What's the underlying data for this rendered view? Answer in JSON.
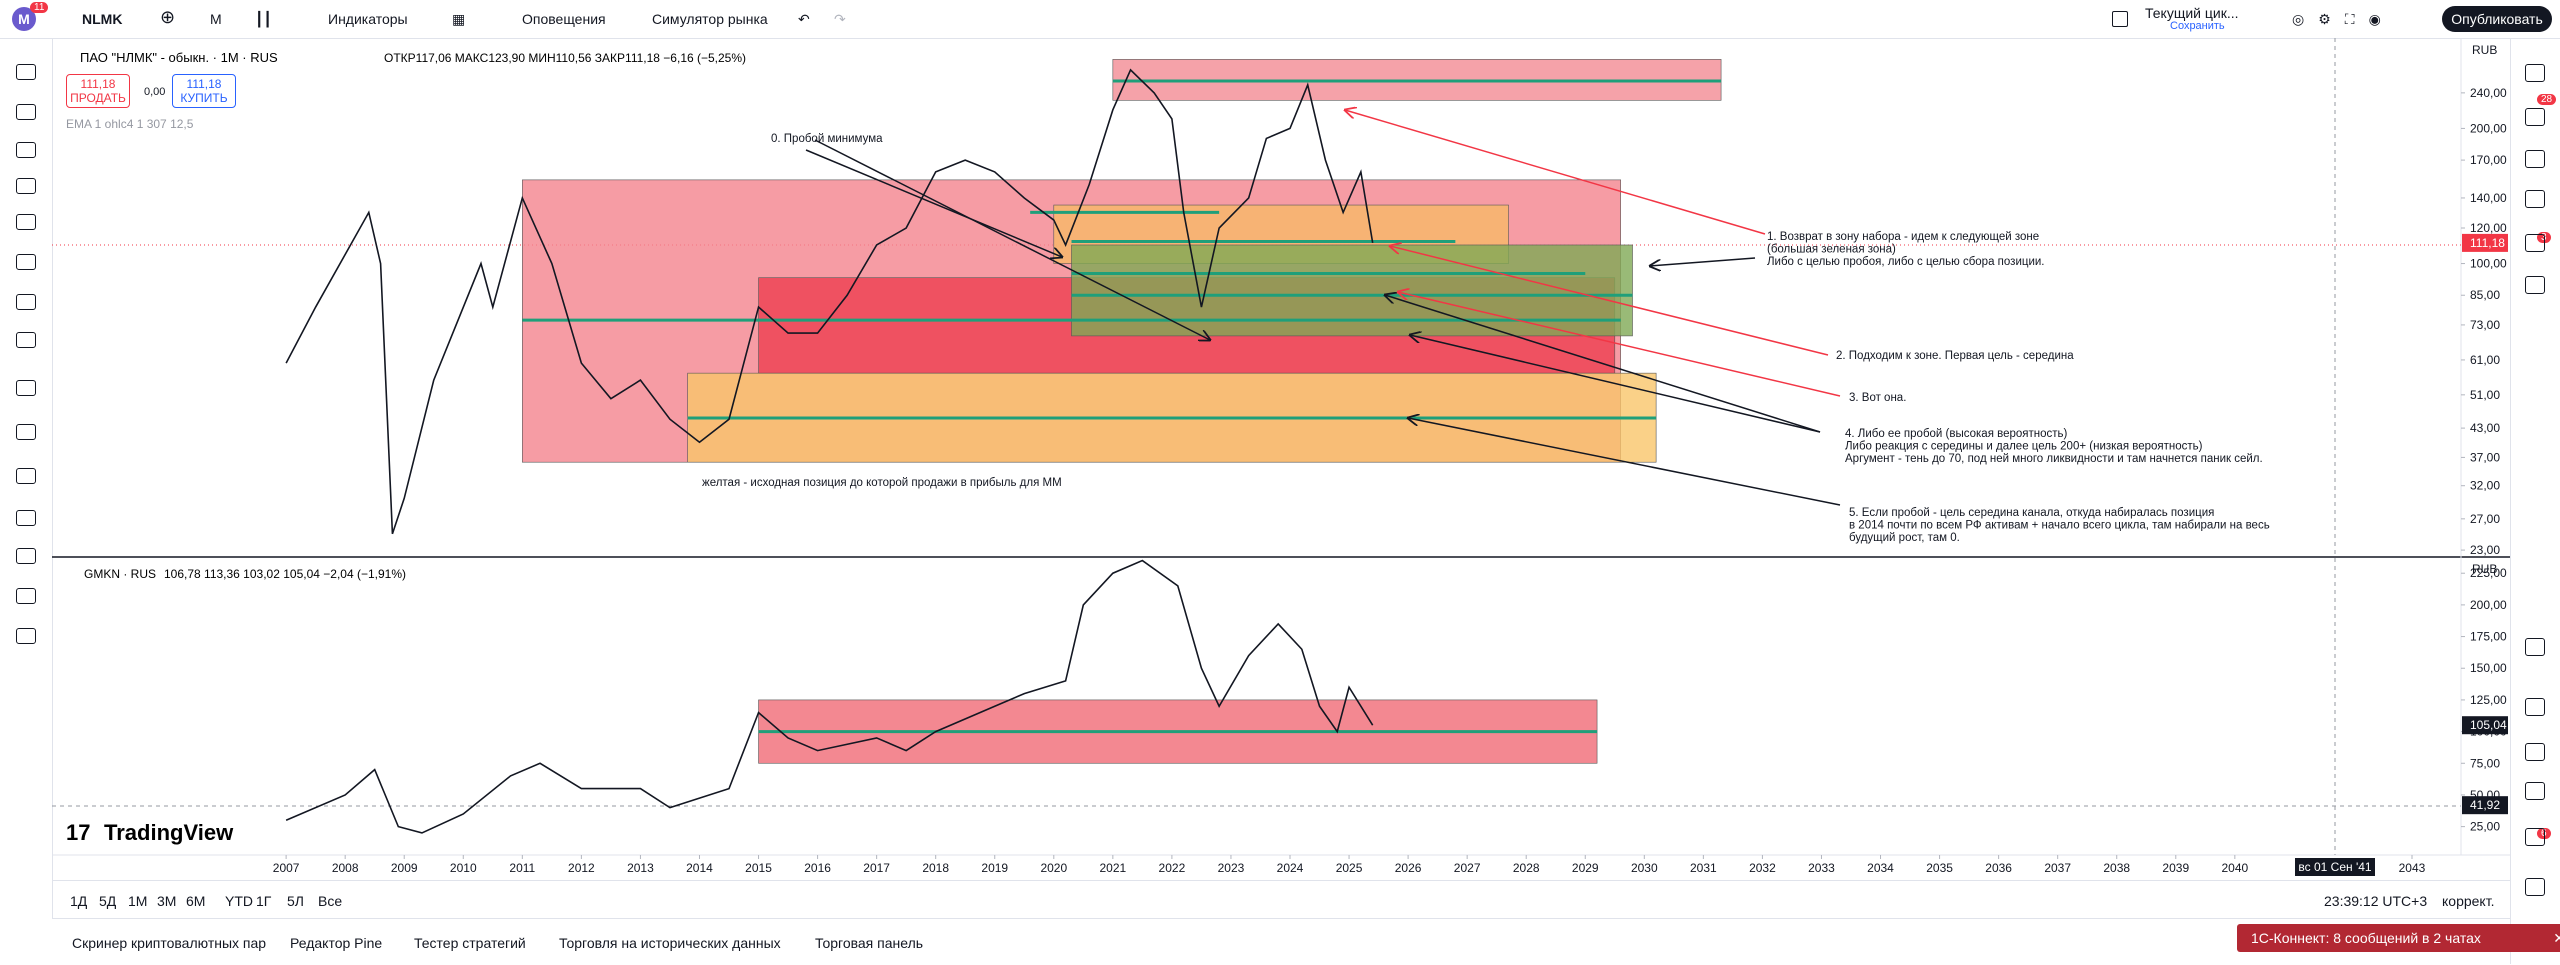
{
  "top_toolbar": {
    "badge": "11",
    "symbol": "NLMK",
    "interval": "М",
    "indicators": "Индикаторы",
    "alerts": "Оповещения",
    "replay": "Симулятор рынка",
    "layout": "Текущий цик...",
    "save": "Сохранить",
    "publish": "Опубликовать"
  },
  "main_header": {
    "title": "ПАО \"НЛМК\" - обыкн. · 1М · RUS",
    "ohlc": "ОТКР117,06 МАКС123,90 МИН110,56 ЗАКР111,18 −6,16 (−5,25%)",
    "sell_price": "111,18",
    "sell": "ПРОДАТЬ",
    "spread": "0,00",
    "buy_price": "111,18",
    "buy": "КУПИТЬ",
    "indicator": "EMA 1 ohlc4 1 307 12,5"
  },
  "lower_header": {
    "symbol": "GMKN · RUS",
    "ohlc": "106,78 113,36 103,02 105,04 −2,04 (−1,91%)"
  },
  "chart_data": [
    {
      "type": "line",
      "log_scale": true,
      "currency": "RUB",
      "xlim": [
        2003.12,
        2043.83
      ],
      "ylim": [
        22.2,
        318
      ],
      "yticks": [
        {
          "value": 240,
          "label": "240,00"
        },
        {
          "value": 200,
          "label": "200,00"
        },
        {
          "value": 170,
          "label": "170,00"
        },
        {
          "value": 140,
          "label": "140,00"
        },
        {
          "value": 120,
          "label": "120,00"
        },
        {
          "value": 100,
          "label": "100,00"
        },
        {
          "value": 85,
          "label": "85,00"
        },
        {
          "value": 73,
          "label": "73,00"
        },
        {
          "value": 61,
          "label": "61,00"
        },
        {
          "value": 51,
          "label": "51,00"
        },
        {
          "value": 43,
          "label": "43,00"
        },
        {
          "value": 37,
          "label": "37,00"
        },
        {
          "value": 32,
          "label": "32,00"
        },
        {
          "value": 27,
          "label": "27,00"
        },
        {
          "value": 23,
          "label": "23,00"
        }
      ],
      "x": [
        2007,
        2007.5,
        2008.4,
        2008.6,
        2008.8,
        2009,
        2009.5,
        2010.3,
        2010.5,
        2011,
        2011.5,
        2012,
        2012.5,
        2013,
        2013.5,
        2014,
        2014.5,
        2015,
        2015.5,
        2016,
        2016.5,
        2017,
        2017.5,
        2018,
        2018.5,
        2019,
        2019.5,
        2020,
        2020.2,
        2020.6,
        2021,
        2021.3,
        2021.7,
        2022,
        2022.2,
        2022.5,
        2022.8,
        2023.3,
        2023.6,
        2024,
        2024.3,
        2024.6,
        2024.9,
        2025.2,
        2025.4
      ],
      "series": [
        {
          "color": "#131722",
          "values": [
            60,
            80,
            130,
            100,
            25,
            30,
            55,
            100,
            80,
            140,
            100,
            60,
            50,
            55,
            45,
            40,
            45,
            80,
            70,
            70,
            85,
            110,
            120,
            160,
            170,
            160,
            140,
            125,
            110,
            150,
            220,
            270,
            240,
            210,
            130,
            80,
            120,
            140,
            190,
            200,
            250,
            170,
            130,
            160,
            111.18
          ]
        }
      ],
      "last_price": {
        "value": 111.18,
        "label": "111,18"
      },
      "zones": [
        {
          "x": [
            2011.0,
            2029.6
          ],
          "y": [
            36.1,
            153.6
          ],
          "color": "#f4838d"
        },
        {
          "x": [
            2013.8,
            2030.2
          ],
          "y": [
            36.1,
            57
          ],
          "color": "#f9c56a"
        },
        {
          "x": [
            2015.0,
            2029.5
          ],
          "y": [
            57,
            93
          ],
          "color": "#ee3f50"
        },
        {
          "x": [
            2020.0,
            2027.7
          ],
          "y": [
            100,
            135
          ],
          "color": "#f8b968"
        },
        {
          "x": [
            2020.3,
            2029.8
          ],
          "y": [
            69,
            110
          ],
          "color": "#7fa955"
        },
        {
          "x": [
            2021.0,
            2031.3
          ],
          "y": [
            231,
            285
          ],
          "color": "#f28b93"
        }
      ],
      "levels": [
        {
          "x": [
            2021.0,
            2031.3
          ],
          "y": 255,
          "color": "#1f9f7a"
        },
        {
          "x": [
            2011.0,
            2029.6
          ],
          "y": 74.8,
          "color": "#1f9f7a"
        },
        {
          "x": [
            2013.8,
            2030.2
          ],
          "y": 45.3,
          "color": "#1f9f7a"
        },
        {
          "x": [
            2020.3,
            2029.8
          ],
          "y": 85,
          "color": "#1f9f7a"
        },
        {
          "x": [
            2020.3,
            2026.8
          ],
          "y": 112,
          "color": "#1f9f7a"
        },
        {
          "x": [
            2019.6,
            2022.8
          ],
          "y": 130,
          "color": "#1f9f7a"
        },
        {
          "x": [
            2020.3,
            2029.0
          ],
          "y": 95,
          "color": "#1f9f7a"
        }
      ]
    },
    {
      "type": "line",
      "log_scale": false,
      "currency": "RUB",
      "xlim": [
        2003.12,
        2043.83
      ],
      "ylim": [
        2.6,
        237.8
      ],
      "yticks": [
        {
          "value": 225,
          "label": "225,00"
        },
        {
          "value": 200,
          "label": "200,00"
        },
        {
          "value": 175,
          "label": "175,00"
        },
        {
          "value": 150,
          "label": "150,00"
        },
        {
          "value": 125,
          "label": "125,00"
        },
        {
          "value": 100,
          "label": "100,00"
        },
        {
          "value": 75,
          "label": "75,00"
        },
        {
          "value": 50,
          "label": "50,00"
        },
        {
          "value": 25,
          "label": "25,00"
        }
      ],
      "xticks": [
        2007,
        2008,
        2009,
        2010,
        2011,
        2012,
        2013,
        2014,
        2015,
        2016,
        2017,
        2018,
        2019,
        2020,
        2021,
        2022,
        2023,
        2024,
        2025,
        2026,
        2027,
        2028,
        2029,
        2030,
        2031,
        2032,
        2033,
        2034,
        2035,
        2036,
        2037,
        2038,
        2039,
        2040,
        2043
      ],
      "x": [
        2007,
        2008,
        2008.5,
        2008.9,
        2009.3,
        2010,
        2010.8,
        2011.3,
        2012,
        2013,
        2013.5,
        2014.5,
        2015,
        2015.5,
        2016,
        2017,
        2017.5,
        2018,
        2019,
        2019.5,
        2020.2,
        2020.5,
        2021,
        2021.5,
        2022.1,
        2022.5,
        2022.8,
        2023.3,
        2023.8,
        2024.2,
        2024.5,
        2024.8,
        2025.0,
        2025.4
      ],
      "series": [
        {
          "color": "#131722",
          "values": [
            30,
            50,
            70,
            25,
            20,
            35,
            65,
            75,
            55,
            55,
            40,
            55,
            115,
            95,
            85,
            95,
            85,
            100,
            120,
            130,
            140,
            200,
            225,
            235,
            215,
            150,
            120,
            160,
            185,
            165,
            120,
            100,
            135,
            105.04
          ]
        }
      ],
      "last_price": {
        "value": 105.04,
        "label": "105,04"
      },
      "crosshair_price": {
        "value": 41.92,
        "label": "41,92"
      },
      "crosshair_date": "вс 01 Сен '41",
      "zones": [
        {
          "x": [
            2015.0,
            2029.2
          ],
          "y": [
            75,
            125
          ],
          "color": "#f06a76"
        }
      ],
      "levels": [
        {
          "x": [
            2015.0,
            2029.2
          ],
          "y": 100,
          "color": "#1f9f7a"
        }
      ]
    }
  ],
  "annotations": [
    {
      "lines": [
        "0. Пробой минимума"
      ]
    },
    {
      "lines": [
        "1. Возврат в зону набора - идем к следующей зоне",
        "(большая зеленая зона)",
        "Либо с целью пробоя, либо с целью сбора позиции."
      ]
    },
    {
      "lines": [
        "2. Подходим к зоне. Первая цель - середина"
      ]
    },
    {
      "lines": [
        "3. Вот она."
      ]
    },
    {
      "lines": [
        "4. Либо ее пробой (высокая вероятность)",
        "Либо реакция с середины и далее цель 200+ (низкая вероятность)",
        "Аргумент - тень до 70, под ней много ликвидности и там начнется паник сейл."
      ]
    },
    {
      "lines": [
        "5. Если пробой - цель середина канала, откуда набиралась позиция",
        "в 2014 почти по всем РФ активам + начало всего цикла, там набирали на весь",
        "будущий рост, там 0."
      ]
    },
    {
      "lines": [
        "желтая - исходная позиция до которой продажи в прибыль для ММ"
      ]
    }
  ],
  "logo": "TradingView",
  "range_bar": {
    "ranges": [
      "1Д",
      "5Д",
      "1М",
      "3М",
      "6М",
      "YTD",
      "1Г",
      "5Л",
      "Все"
    ],
    "time": "23:39:12 UTC+3",
    "adjust": "коррект."
  },
  "bottom_tabs": [
    "Скринер криптовалютных пар",
    "Редактор Pine",
    "Тестер стратегий",
    "Торговля на исторических данных",
    "Торговая панель"
  ],
  "notification": "1С-Коннект: 8 сообщений в 2 чатах",
  "right_badges": [
    "28",
    "3",
    "6"
  ]
}
